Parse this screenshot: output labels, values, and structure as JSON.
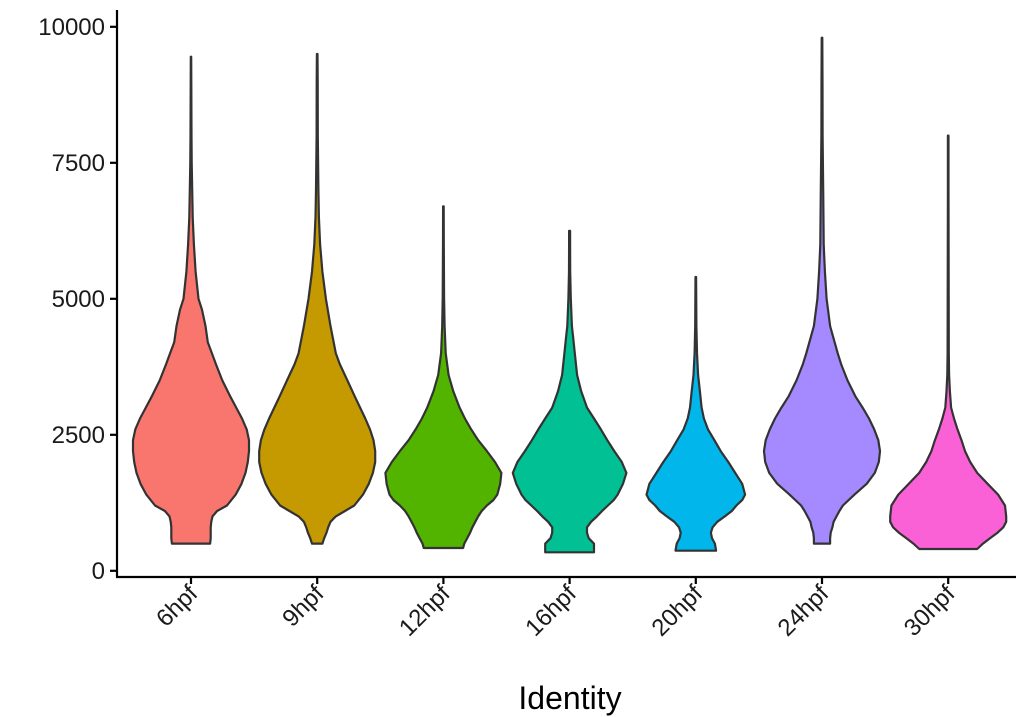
{
  "chart_data": {
    "type": "violin",
    "title": "",
    "xlabel": "Identity",
    "ylabel": "",
    "ylim": [
      -100,
      10300
    ],
    "y_ticks": [
      0,
      2500,
      5000,
      7500,
      10000
    ],
    "y_tick_labels": [
      "0",
      "2500",
      "5000",
      "7500",
      "10000"
    ],
    "grid": false,
    "legend": "none",
    "categories": [
      "6hpf",
      "9hpf",
      "12hpf",
      "16hpf",
      "20hpf",
      "24hpf",
      "30hpf"
    ],
    "series": [
      {
        "category": "6hpf",
        "color": "#F8766D",
        "profile": [
          [
            500,
            0.33
          ],
          [
            600,
            0.34
          ],
          [
            700,
            0.34
          ],
          [
            800,
            0.34
          ],
          [
            900,
            0.35
          ],
          [
            1000,
            0.37
          ],
          [
            1100,
            0.45
          ],
          [
            1200,
            0.62
          ],
          [
            1400,
            0.77
          ],
          [
            1600,
            0.87
          ],
          [
            1800,
            0.94
          ],
          [
            2000,
            0.98
          ],
          [
            2200,
            1.0
          ],
          [
            2400,
            1.0
          ],
          [
            2600,
            0.96
          ],
          [
            2800,
            0.88
          ],
          [
            3000,
            0.78
          ],
          [
            3200,
            0.68
          ],
          [
            3500,
            0.54
          ],
          [
            3800,
            0.43
          ],
          [
            4000,
            0.36
          ],
          [
            4200,
            0.29
          ],
          [
            4500,
            0.25
          ],
          [
            4800,
            0.19
          ],
          [
            5000,
            0.13
          ],
          [
            5500,
            0.08
          ],
          [
            6000,
            0.05
          ],
          [
            6500,
            0.03
          ],
          [
            7000,
            0.02
          ],
          [
            7500,
            0.012
          ],
          [
            8000,
            0.008
          ],
          [
            9000,
            0.006
          ],
          [
            9450,
            0.004
          ]
        ]
      },
      {
        "category": "9hpf",
        "color": "#C49A00",
        "profile": [
          [
            500,
            0.09
          ],
          [
            600,
            0.12
          ],
          [
            700,
            0.16
          ],
          [
            800,
            0.19
          ],
          [
            900,
            0.23
          ],
          [
            1000,
            0.32
          ],
          [
            1100,
            0.48
          ],
          [
            1200,
            0.64
          ],
          [
            1400,
            0.79
          ],
          [
            1600,
            0.89
          ],
          [
            1800,
            0.96
          ],
          [
            2000,
            1.0
          ],
          [
            2200,
            1.0
          ],
          [
            2400,
            0.97
          ],
          [
            2600,
            0.91
          ],
          [
            2800,
            0.83
          ],
          [
            3000,
            0.74
          ],
          [
            3200,
            0.65
          ],
          [
            3500,
            0.52
          ],
          [
            3800,
            0.39
          ],
          [
            4000,
            0.32
          ],
          [
            4500,
            0.23
          ],
          [
            5000,
            0.15
          ],
          [
            5500,
            0.09
          ],
          [
            6000,
            0.05
          ],
          [
            6500,
            0.03
          ],
          [
            7000,
            0.02
          ],
          [
            8000,
            0.01
          ],
          [
            9000,
            0.008
          ],
          [
            9500,
            0.005
          ]
        ]
      },
      {
        "category": "12hpf",
        "color": "#53B400",
        "profile": [
          [
            420,
            0.34
          ],
          [
            500,
            0.36
          ],
          [
            600,
            0.41
          ],
          [
            700,
            0.46
          ],
          [
            800,
            0.5
          ],
          [
            900,
            0.55
          ],
          [
            1000,
            0.6
          ],
          [
            1100,
            0.66
          ],
          [
            1200,
            0.75
          ],
          [
            1300,
            0.86
          ],
          [
            1400,
            0.93
          ],
          [
            1600,
            0.98
          ],
          [
            1800,
            1.0
          ],
          [
            2000,
            0.89
          ],
          [
            2200,
            0.75
          ],
          [
            2400,
            0.6
          ],
          [
            2600,
            0.48
          ],
          [
            2800,
            0.37
          ],
          [
            3000,
            0.28
          ],
          [
            3300,
            0.17
          ],
          [
            3600,
            0.09
          ],
          [
            4000,
            0.04
          ],
          [
            4500,
            0.02
          ],
          [
            5000,
            0.012
          ],
          [
            6000,
            0.007
          ],
          [
            6700,
            0.005
          ]
        ]
      },
      {
        "category": "16hpf",
        "color": "#00C094",
        "profile": [
          [
            340,
            0.42
          ],
          [
            500,
            0.42
          ],
          [
            600,
            0.33
          ],
          [
            700,
            0.3
          ],
          [
            800,
            0.3
          ],
          [
            900,
            0.37
          ],
          [
            1000,
            0.47
          ],
          [
            1100,
            0.56
          ],
          [
            1200,
            0.66
          ],
          [
            1300,
            0.76
          ],
          [
            1400,
            0.83
          ],
          [
            1600,
            0.92
          ],
          [
            1800,
            0.98
          ],
          [
            2000,
            0.9
          ],
          [
            2200,
            0.77
          ],
          [
            2400,
            0.65
          ],
          [
            2600,
            0.54
          ],
          [
            2800,
            0.42
          ],
          [
            3000,
            0.3
          ],
          [
            3300,
            0.2
          ],
          [
            3600,
            0.13
          ],
          [
            4000,
            0.09
          ],
          [
            4300,
            0.06
          ],
          [
            4500,
            0.04
          ],
          [
            5000,
            0.02
          ],
          [
            5500,
            0.01
          ],
          [
            6000,
            0.008
          ],
          [
            6250,
            0.008
          ]
        ]
      },
      {
        "category": "20hpf",
        "color": "#00B6EB",
        "profile": [
          [
            370,
            0.35
          ],
          [
            500,
            0.33
          ],
          [
            600,
            0.28
          ],
          [
            700,
            0.26
          ],
          [
            800,
            0.29
          ],
          [
            900,
            0.37
          ],
          [
            1000,
            0.5
          ],
          [
            1100,
            0.62
          ],
          [
            1200,
            0.7
          ],
          [
            1300,
            0.8
          ],
          [
            1400,
            0.85
          ],
          [
            1600,
            0.8
          ],
          [
            1800,
            0.68
          ],
          [
            2000,
            0.56
          ],
          [
            2200,
            0.43
          ],
          [
            2400,
            0.32
          ],
          [
            2600,
            0.21
          ],
          [
            2800,
            0.14
          ],
          [
            3000,
            0.1
          ],
          [
            3300,
            0.07
          ],
          [
            3600,
            0.04
          ],
          [
            4000,
            0.02
          ],
          [
            4500,
            0.01
          ],
          [
            5400,
            0.005
          ]
        ]
      },
      {
        "category": "24hpf",
        "color": "#A58AFF",
        "profile": [
          [
            500,
            0.14
          ],
          [
            600,
            0.14
          ],
          [
            700,
            0.15
          ],
          [
            800,
            0.18
          ],
          [
            900,
            0.2
          ],
          [
            1000,
            0.25
          ],
          [
            1100,
            0.3
          ],
          [
            1200,
            0.36
          ],
          [
            1400,
            0.56
          ],
          [
            1600,
            0.77
          ],
          [
            1800,
            0.91
          ],
          [
            2000,
            0.98
          ],
          [
            2200,
            1.0
          ],
          [
            2400,
            0.97
          ],
          [
            2600,
            0.9
          ],
          [
            2800,
            0.81
          ],
          [
            3000,
            0.7
          ],
          [
            3200,
            0.58
          ],
          [
            3500,
            0.44
          ],
          [
            3800,
            0.33
          ],
          [
            4000,
            0.27
          ],
          [
            4500,
            0.14
          ],
          [
            5000,
            0.08
          ],
          [
            5500,
            0.05
          ],
          [
            6000,
            0.03
          ],
          [
            7000,
            0.02
          ],
          [
            8000,
            0.01
          ],
          [
            9000,
            0.008
          ],
          [
            9800,
            0.005
          ]
        ]
      },
      {
        "category": "30hpf",
        "color": "#FB61D7",
        "profile": [
          [
            400,
            0.5
          ],
          [
            500,
            0.6
          ],
          [
            600,
            0.72
          ],
          [
            700,
            0.85
          ],
          [
            800,
            0.95
          ],
          [
            900,
            1.0
          ],
          [
            1000,
            1.0
          ],
          [
            1200,
            0.98
          ],
          [
            1400,
            0.86
          ],
          [
            1600,
            0.68
          ],
          [
            1800,
            0.5
          ],
          [
            2000,
            0.38
          ],
          [
            2200,
            0.29
          ],
          [
            2400,
            0.23
          ],
          [
            2600,
            0.16
          ],
          [
            2800,
            0.1
          ],
          [
            3000,
            0.05
          ],
          [
            3300,
            0.03
          ],
          [
            3600,
            0.015
          ],
          [
            4000,
            0.01
          ],
          [
            5000,
            0.008
          ],
          [
            6000,
            0.007
          ],
          [
            7000,
            0.006
          ],
          [
            8000,
            0.005
          ]
        ]
      }
    ]
  }
}
